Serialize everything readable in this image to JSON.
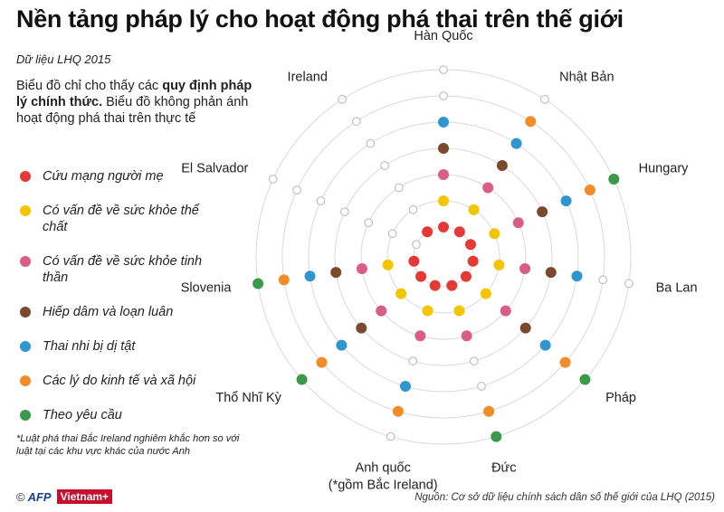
{
  "header": {
    "title": "Nền tảng pháp lý cho hoạt động phá thai trên thế giới",
    "subtitle": "Dữ liệu LHQ 2015"
  },
  "note": {
    "part1": "Biểu đồ chỉ cho thấy các ",
    "bold": "quy định pháp lý chính thức.",
    "part2": " Biểu đồ không phản ánh hoạt động phá thai trên thực tế"
  },
  "footnote": "*Luật phá thai Bắc Ireland nghiêm khắc hơn so với luật tại các khu vực khác của nước Anh",
  "logo": {
    "copyright": "©",
    "afp": "AFP",
    "vietnam": "Vietnam+"
  },
  "source": "Nguồn: Cơ sở dữ liệu chính sách dân số thế giới của LHQ (2015)",
  "legend_note": "Legend order corresponds to ring order from the center outward",
  "colors": {
    "Cứu mạng người mẹ": "#e53935",
    "Có vấn đề về sức khỏe thể chất": "#f5c400",
    "Có vấn đề về sức khỏe tinh thần": "#d95d86",
    "Hiếp dâm và loạn luân": "#7b4a2e",
    "Thai nhi bị dị tật": "#2f96cf",
    "Các lý do kinh tế và xã hội": "#f28c28",
    "Theo yêu cầu": "#3a9a4a",
    "not_permitted": "#ffffff"
  },
  "chart_data": {
    "type": "radar",
    "title": "Nền tảng pháp lý cho hoạt động phá thai trên thế giới",
    "categories": [
      "Hàn Quốc",
      "Nhật Bản",
      "Hungary",
      "Ba Lan",
      "Pháp",
      "Đức",
      "Anh quốc\n(*gồm Bắc Ireland)",
      "Thổ Nhĩ Kỳ",
      "Slovenia",
      "El Salvador",
      "Ireland"
    ],
    "series": [
      {
        "name": "Cứu mạng người mẹ",
        "values": [
          1,
          1,
          1,
          1,
          1,
          1,
          1,
          1,
          1,
          0,
          1
        ]
      },
      {
        "name": "Có vấn đề về sức khỏe thể chất",
        "values": [
          1,
          1,
          1,
          1,
          1,
          1,
          1,
          1,
          1,
          0,
          0
        ]
      },
      {
        "name": "Có vấn đề về sức khỏe tinh thần",
        "values": [
          1,
          1,
          1,
          1,
          1,
          1,
          1,
          1,
          1,
          0,
          0
        ]
      },
      {
        "name": "Hiếp dâm và loạn luân",
        "values": [
          1,
          1,
          1,
          1,
          1,
          0,
          0,
          1,
          1,
          0,
          0
        ]
      },
      {
        "name": "Thai nhi bị dị tật",
        "values": [
          1,
          1,
          1,
          1,
          1,
          0,
          1,
          1,
          1,
          0,
          0
        ]
      },
      {
        "name": "Các lý do kinh tế và xã hội",
        "values": [
          0,
          1,
          1,
          0,
          1,
          1,
          1,
          1,
          1,
          0,
          0
        ]
      },
      {
        "name": "Theo yêu cầu",
        "values": [
          0,
          0,
          1,
          0,
          1,
          1,
          0,
          1,
          1,
          0,
          0
        ]
      }
    ],
    "legend_position": "left",
    "grid": true
  }
}
